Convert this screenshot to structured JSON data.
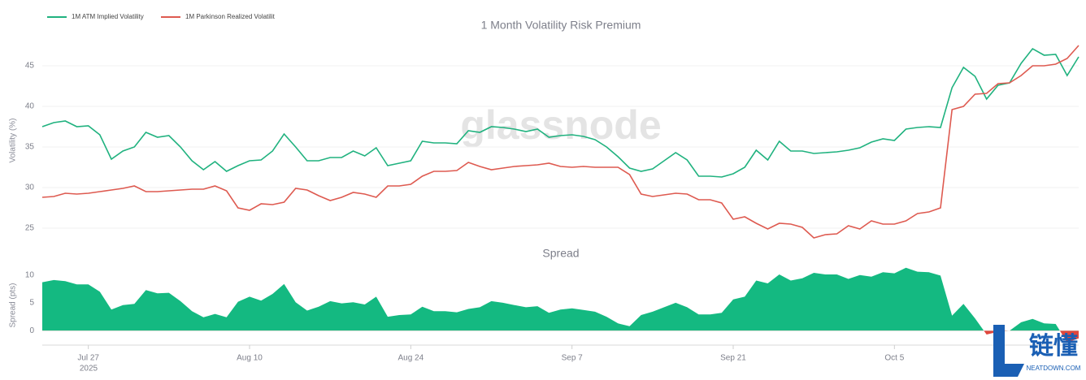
{
  "chart_data": [
    {
      "type": "line",
      "title": "1 Month Volatility Risk Premium",
      "ylabel": "Volatility (%)",
      "watermark": "glassnode",
      "legend": "top-left",
      "grid": true,
      "ylim": [
        23.1,
        48.6
      ],
      "yticks": [
        25,
        30,
        35,
        40,
        45
      ],
      "xlim": [
        "2025-07-23",
        "2025-10-21"
      ],
      "x": [
        "2025-07-23",
        "2025-07-24",
        "2025-07-25",
        "2025-07-26",
        "2025-07-27",
        "2025-07-28",
        "2025-07-29",
        "2025-07-30",
        "2025-07-31",
        "2025-08-01",
        "2025-08-02",
        "2025-08-03",
        "2025-08-04",
        "2025-08-05",
        "2025-08-06",
        "2025-08-07",
        "2025-08-08",
        "2025-08-09",
        "2025-08-10",
        "2025-08-11",
        "2025-08-12",
        "2025-08-13",
        "2025-08-14",
        "2025-08-15",
        "2025-08-16",
        "2025-08-17",
        "2025-08-18",
        "2025-08-19",
        "2025-08-20",
        "2025-08-21",
        "2025-08-22",
        "2025-08-23",
        "2025-08-24",
        "2025-08-25",
        "2025-08-26",
        "2025-08-27",
        "2025-08-28",
        "2025-08-29",
        "2025-08-30",
        "2025-08-31",
        "2025-09-01",
        "2025-09-02",
        "2025-09-03",
        "2025-09-04",
        "2025-09-05",
        "2025-09-06",
        "2025-09-07",
        "2025-09-08",
        "2025-09-09",
        "2025-09-10",
        "2025-09-11",
        "2025-09-12",
        "2025-09-13",
        "2025-09-14",
        "2025-09-15",
        "2025-09-16",
        "2025-09-17",
        "2025-09-18",
        "2025-09-19",
        "2025-09-20",
        "2025-09-21",
        "2025-09-22",
        "2025-09-23",
        "2025-09-24",
        "2025-09-25",
        "2025-09-26",
        "2025-09-27",
        "2025-09-28",
        "2025-09-29",
        "2025-09-30",
        "2025-10-01",
        "2025-10-02",
        "2025-10-03",
        "2025-10-04",
        "2025-10-05",
        "2025-10-06",
        "2025-10-07",
        "2025-10-08",
        "2025-10-09",
        "2025-10-10",
        "2025-10-11",
        "2025-10-12",
        "2025-10-13",
        "2025-10-14",
        "2025-10-15",
        "2025-10-16",
        "2025-10-17",
        "2025-10-18",
        "2025-10-19",
        "2025-10-20",
        "2025-10-21"
      ],
      "series": [
        {
          "name": "1M ATM Implied Volatility",
          "color": "#20b27f",
          "values": [
            37.5,
            38.0,
            38.2,
            37.5,
            37.6,
            36.5,
            33.5,
            34.5,
            35.0,
            36.8,
            36.2,
            36.4,
            35.0,
            33.3,
            32.2,
            33.2,
            32.0,
            32.7,
            33.3,
            33.4,
            34.5,
            36.6,
            35.0,
            33.3,
            33.3,
            33.7,
            33.7,
            34.5,
            33.9,
            34.9,
            32.7,
            33.0,
            33.3,
            35.7,
            35.5,
            35.5,
            35.4,
            37.0,
            36.8,
            37.5,
            37.4,
            37.2,
            36.9,
            37.2,
            36.2,
            36.4,
            36.5,
            36.3,
            35.9,
            35.0,
            33.8,
            32.4,
            32.0,
            32.3,
            33.3,
            34.3,
            33.4,
            31.4,
            31.4,
            31.3,
            31.7,
            32.5,
            34.6,
            33.4,
            35.7,
            34.5,
            34.5,
            34.2,
            34.3,
            34.4,
            34.6,
            34.9,
            35.6,
            36.0,
            35.8,
            37.2,
            37.4,
            37.5,
            37.4,
            42.3,
            44.8,
            43.7,
            40.9,
            42.6,
            42.9,
            45.3,
            47.1,
            46.3,
            46.4,
            43.8,
            46.1
          ]
        },
        {
          "name": "1M Parkinson Realized Volatilit",
          "color": "#de5a50",
          "values": [
            28.8,
            28.9,
            29.3,
            29.2,
            29.3,
            29.5,
            29.7,
            29.9,
            30.2,
            29.5,
            29.5,
            29.6,
            29.7,
            29.8,
            29.8,
            30.2,
            29.6,
            27.5,
            27.2,
            28.0,
            27.9,
            28.2,
            29.9,
            29.7,
            29.0,
            28.4,
            28.8,
            29.4,
            29.2,
            28.8,
            30.2,
            30.2,
            30.4,
            31.4,
            32.0,
            32.0,
            32.1,
            33.1,
            32.6,
            32.2,
            32.4,
            32.6,
            32.7,
            32.8,
            33.0,
            32.6,
            32.5,
            32.6,
            32.5,
            32.5,
            32.5,
            31.6,
            29.2,
            28.9,
            29.1,
            29.3,
            29.2,
            28.5,
            28.5,
            28.1,
            26.1,
            26.4,
            25.6,
            24.9,
            25.6,
            25.5,
            25.1,
            23.8,
            24.2,
            24.3,
            25.3,
            24.9,
            25.9,
            25.5,
            25.5,
            25.9,
            26.8,
            27.0,
            27.5,
            39.6,
            40.0,
            41.5,
            41.6,
            42.8,
            42.9,
            43.8,
            45.0,
            45.0,
            45.2,
            45.9,
            47.5
          ]
        }
      ]
    },
    {
      "type": "area",
      "title": "Spread",
      "ylabel": "Spread (pts)",
      "color": "#14b981",
      "negative_color": "#e0473d",
      "ylim": [
        -2.6,
        12
      ],
      "yticks": [
        0,
        5,
        10
      ],
      "xlim": [
        "2025-07-23",
        "2025-10-21"
      ],
      "xticks": [
        {
          "value": "2025-07-27",
          "label": "Jul 27"
        },
        {
          "value": "2025-08-10",
          "label": "Aug 10"
        },
        {
          "value": "2025-08-24",
          "label": "Aug 24"
        },
        {
          "value": "2025-09-07",
          "label": "Sep 7"
        },
        {
          "value": "2025-09-21",
          "label": "Sep 21"
        },
        {
          "value": "2025-10-05",
          "label": "Oct 5"
        }
      ],
      "x_year_label": "2025",
      "x": [
        "2025-07-23",
        "2025-07-24",
        "2025-07-25",
        "2025-07-26",
        "2025-07-27",
        "2025-07-28",
        "2025-07-29",
        "2025-07-30",
        "2025-07-31",
        "2025-08-01",
        "2025-08-02",
        "2025-08-03",
        "2025-08-04",
        "2025-08-05",
        "2025-08-06",
        "2025-08-07",
        "2025-08-08",
        "2025-08-09",
        "2025-08-10",
        "2025-08-11",
        "2025-08-12",
        "2025-08-13",
        "2025-08-14",
        "2025-08-15",
        "2025-08-16",
        "2025-08-17",
        "2025-08-18",
        "2025-08-19",
        "2025-08-20",
        "2025-08-21",
        "2025-08-22",
        "2025-08-23",
        "2025-08-24",
        "2025-08-25",
        "2025-08-26",
        "2025-08-27",
        "2025-08-28",
        "2025-08-29",
        "2025-08-30",
        "2025-08-31",
        "2025-09-01",
        "2025-09-02",
        "2025-09-03",
        "2025-09-04",
        "2025-09-05",
        "2025-09-06",
        "2025-09-07",
        "2025-09-08",
        "2025-09-09",
        "2025-09-10",
        "2025-09-11",
        "2025-09-12",
        "2025-09-13",
        "2025-09-14",
        "2025-09-15",
        "2025-09-16",
        "2025-09-17",
        "2025-09-18",
        "2025-09-19",
        "2025-09-20",
        "2025-09-21",
        "2025-09-22",
        "2025-09-23",
        "2025-09-24",
        "2025-09-25",
        "2025-09-26",
        "2025-09-27",
        "2025-09-28",
        "2025-09-29",
        "2025-09-30",
        "2025-10-01",
        "2025-10-02",
        "2025-10-03",
        "2025-10-04",
        "2025-10-05",
        "2025-10-06",
        "2025-10-07",
        "2025-10-08",
        "2025-10-09",
        "2025-10-10",
        "2025-10-11",
        "2025-10-12",
        "2025-10-13",
        "2025-10-14",
        "2025-10-15",
        "2025-10-16",
        "2025-10-17",
        "2025-10-18",
        "2025-10-19",
        "2025-10-20",
        "2025-10-21"
      ],
      "values": [
        8.7,
        9.1,
        8.9,
        8.3,
        8.3,
        7.0,
        3.8,
        4.6,
        4.8,
        7.3,
        6.7,
        6.8,
        5.3,
        3.5,
        2.4,
        3.0,
        2.4,
        5.2,
        6.1,
        5.4,
        6.6,
        8.4,
        5.1,
        3.6,
        4.3,
        5.3,
        4.9,
        5.1,
        4.7,
        6.1,
        2.5,
        2.8,
        2.9,
        4.3,
        3.5,
        3.5,
        3.3,
        3.9,
        4.2,
        5.3,
        5.0,
        4.6,
        4.2,
        4.4,
        3.2,
        3.8,
        4.0,
        3.7,
        3.4,
        2.5,
        1.3,
        0.8,
        2.8,
        3.4,
        4.2,
        5.0,
        4.2,
        2.9,
        2.9,
        3.2,
        5.6,
        6.1,
        9.0,
        8.5,
        10.1,
        9.0,
        9.4,
        10.4,
        10.1,
        10.1,
        9.3,
        10.0,
        9.7,
        10.5,
        10.3,
        11.3,
        10.6,
        10.5,
        9.9,
        2.7,
        4.8,
        2.2,
        -0.7,
        -0.2,
        0.0,
        1.5,
        2.1,
        1.3,
        1.2,
        -2.1,
        -1.4
      ]
    }
  ],
  "overlay_logo": {
    "text": "链懂",
    "subtext": "NEATDOWN.COM"
  }
}
